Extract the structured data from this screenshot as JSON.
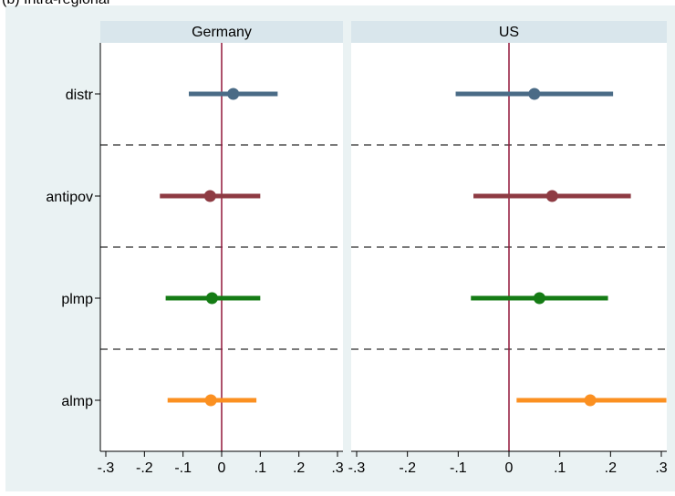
{
  "caption": "(b) Intra-regional",
  "chart_data": {
    "type": "coefficient-plot",
    "categories": [
      "distr",
      "antipov",
      "plmp",
      "almp"
    ],
    "colors": [
      "#4a6b86",
      "#8e3b43",
      "#157c15",
      "#fb9021"
    ],
    "reference_line": {
      "x": 0,
      "color": "#92173a"
    },
    "xlim": [
      -0.3,
      0.3
    ],
    "xticks": [
      -0.3,
      -0.2,
      -0.1,
      0,
      0.1,
      0.2,
      0.3
    ],
    "xtick_labels": [
      "-.3",
      "-.2",
      "-.1",
      "0",
      ".1",
      ".2",
      ".3"
    ],
    "separators": "dashed grey lines between categories",
    "panels": [
      {
        "title": "Germany",
        "estimates": [
          {
            "category": "distr",
            "coef": 0.03,
            "lo": -0.085,
            "hi": 0.145
          },
          {
            "category": "antipov",
            "coef": -0.03,
            "lo": -0.16,
            "hi": 0.1
          },
          {
            "category": "plmp",
            "coef": -0.025,
            "lo": -0.145,
            "hi": 0.1
          },
          {
            "category": "almp",
            "coef": -0.028,
            "lo": -0.14,
            "hi": 0.09
          }
        ]
      },
      {
        "title": "US",
        "estimates": [
          {
            "category": "distr",
            "coef": 0.05,
            "lo": -0.105,
            "hi": 0.205
          },
          {
            "category": "antipov",
            "coef": 0.085,
            "lo": -0.07,
            "hi": 0.24
          },
          {
            "category": "plmp",
            "coef": 0.06,
            "lo": -0.075,
            "hi": 0.195
          },
          {
            "category": "almp",
            "coef": 0.16,
            "lo": 0.015,
            "hi": 0.31
          }
        ]
      }
    ]
  }
}
